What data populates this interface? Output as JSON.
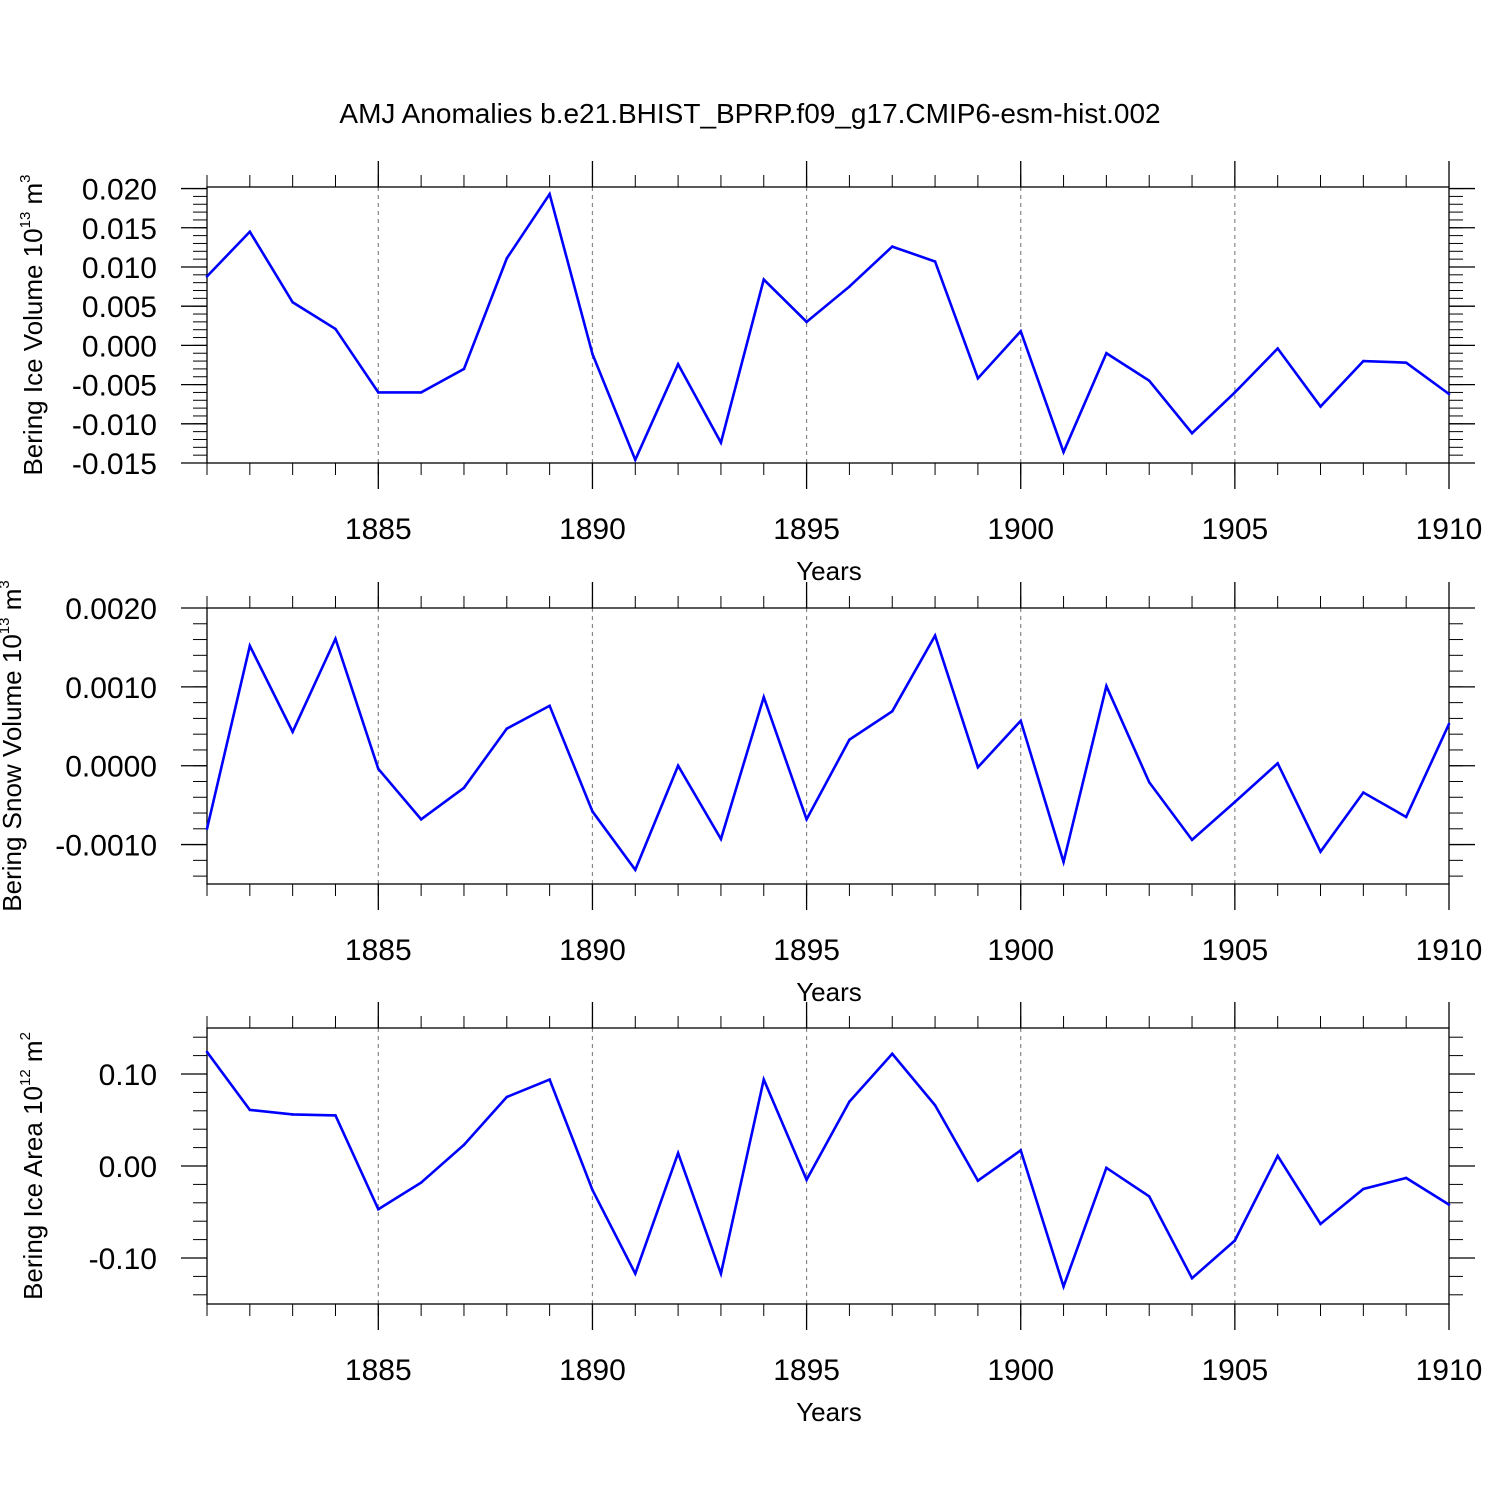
{
  "title": "AMJ Anomalies b.e21.BHIST_BPRP.f09_g17.CMIP6-esm-hist.002",
  "line_color": "#0000ff",
  "grid_color": "#888888",
  "chart_data": [
    {
      "type": "line",
      "ylabel": "Bering Ice Volume",
      "ylabel_unit_base": "10",
      "ylabel_unit_exp": "13",
      "ylabel_unit_suffix": "m",
      "ylabel_unit_suffix_exp": "3",
      "xlabel": "Years",
      "xlim": [
        1881,
        1910
      ],
      "ylim": [
        -0.015,
        0.0202
      ],
      "yticks": [
        0.02,
        0.015,
        0.01,
        0.005,
        0.0,
        -0.005,
        -0.01,
        -0.015
      ],
      "ytick_labels": [
        "0.020",
        "0.015",
        "0.010",
        "0.005",
        "0.000",
        "-0.005",
        "-0.010",
        "-0.015"
      ],
      "yminor_step": 0.001,
      "xticks": [
        1885,
        1890,
        1895,
        1900,
        1905,
        1910
      ],
      "xtick_labels": [
        "1885",
        "1890",
        "1895",
        "1900",
        "1905",
        "1910"
      ],
      "x": [
        1881,
        1882,
        1883,
        1884,
        1885,
        1886,
        1887,
        1888,
        1889,
        1890,
        1891,
        1892,
        1893,
        1894,
        1895,
        1896,
        1897,
        1898,
        1899,
        1900,
        1901,
        1902,
        1903,
        1904,
        1905,
        1906,
        1907,
        1908,
        1909,
        1910
      ],
      "values": [
        0.0088,
        0.0145,
        0.0055,
        0.0021,
        -0.006,
        -0.006,
        -0.003,
        0.0111,
        0.0193,
        -0.0011,
        -0.0146,
        -0.0024,
        -0.0124,
        0.0084,
        0.003,
        0.0075,
        0.0126,
        0.0107,
        -0.0042,
        0.0018,
        -0.0136,
        -0.001,
        -0.0045,
        -0.0112,
        -0.006,
        -0.0004,
        -0.0078,
        -0.002,
        -0.0022,
        -0.0062
      ]
    },
    {
      "type": "line",
      "ylabel": "Bering Snow Volume",
      "ylabel_unit_base": "10",
      "ylabel_unit_exp": "13",
      "ylabel_unit_suffix": "m",
      "ylabel_unit_suffix_exp": "3",
      "xlabel": "Years",
      "xlim": [
        1881,
        1910
      ],
      "ylim": [
        -0.0015,
        0.002
      ],
      "yticks": [
        0.002,
        0.001,
        0.0,
        -0.001
      ],
      "ytick_labels": [
        "0.0020",
        "0.0010",
        "0.0000",
        "-0.0010"
      ],
      "yminor_step": 0.0002,
      "xticks": [
        1885,
        1890,
        1895,
        1900,
        1905,
        1910
      ],
      "xtick_labels": [
        "1885",
        "1890",
        "1895",
        "1900",
        "1905",
        "1910"
      ],
      "x": [
        1881,
        1882,
        1883,
        1884,
        1885,
        1886,
        1887,
        1888,
        1889,
        1890,
        1891,
        1892,
        1893,
        1894,
        1895,
        1896,
        1897,
        1898,
        1899,
        1900,
        1901,
        1902,
        1903,
        1904,
        1905,
        1906,
        1907,
        1908,
        1909,
        1910
      ],
      "values": [
        -0.0008,
        0.00152,
        0.00043,
        0.00161,
        -4e-05,
        -0.00068,
        -0.00028,
        0.00047,
        0.00076,
        -0.00058,
        -0.00132,
        0.0,
        -0.00093,
        0.00087,
        -0.00068,
        0.00033,
        0.00069,
        0.00165,
        -2e-05,
        0.00057,
        -0.00122,
        0.00101,
        -0.00021,
        -0.00094,
        -0.00046,
        3e-05,
        -0.00109,
        -0.00034,
        -0.00065,
        0.00053
      ]
    },
    {
      "type": "line",
      "ylabel": "Bering Ice Area",
      "ylabel_unit_base": "10",
      "ylabel_unit_exp": "12",
      "ylabel_unit_suffix": "m",
      "ylabel_unit_suffix_exp": "2",
      "xlabel": "Years",
      "xlim": [
        1881,
        1910
      ],
      "ylim": [
        -0.15,
        0.15
      ],
      "yticks": [
        0.1,
        0.0,
        -0.1
      ],
      "ytick_labels": [
        "0.10",
        "0.00",
        "-0.10"
      ],
      "yminor_step": 0.02,
      "xticks": [
        1885,
        1890,
        1895,
        1900,
        1905,
        1910
      ],
      "xtick_labels": [
        "1885",
        "1890",
        "1895",
        "1900",
        "1905",
        "1910"
      ],
      "x": [
        1881,
        1882,
        1883,
        1884,
        1885,
        1886,
        1887,
        1888,
        1889,
        1890,
        1891,
        1892,
        1893,
        1894,
        1895,
        1896,
        1897,
        1898,
        1899,
        1900,
        1901,
        1902,
        1903,
        1904,
        1905,
        1906,
        1907,
        1908,
        1909,
        1910
      ],
      "values": [
        0.124,
        0.061,
        0.056,
        0.055,
        -0.047,
        -0.018,
        0.023,
        0.075,
        0.094,
        -0.026,
        -0.117,
        0.014,
        -0.117,
        0.094,
        -0.015,
        0.07,
        0.122,
        0.066,
        -0.016,
        0.017,
        -0.131,
        -0.002,
        -0.033,
        -0.122,
        -0.081,
        0.011,
        -0.063,
        -0.025,
        -0.013,
        -0.042
      ]
    }
  ]
}
